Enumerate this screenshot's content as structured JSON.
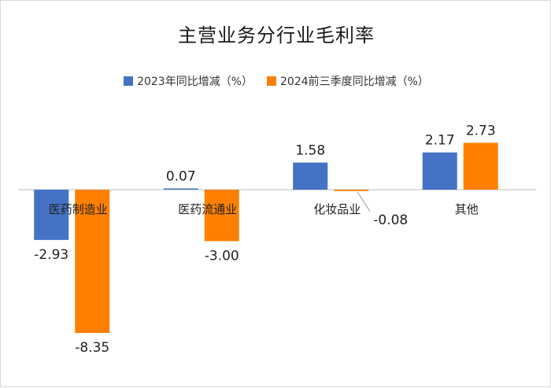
{
  "chart_data": {
    "type": "bar",
    "title": "主营业务分行业毛利率",
    "categories": [
      "医药制造业",
      "医药流通业",
      "化妆品业",
      "其他"
    ],
    "series": [
      {
        "name": "2023年同比增减（%）",
        "color": "#4472C4",
        "values": [
          -2.93,
          0.07,
          1.58,
          2.17
        ]
      },
      {
        "name": "2024前三季度同比增减（%）",
        "color": "#FF8000",
        "values": [
          -8.35,
          -3.0,
          -0.08,
          2.73
        ]
      }
    ],
    "value_labels": [
      [
        "-2.93",
        "0.07",
        "1.58",
        "2.17"
      ],
      [
        "-8.35",
        "-3.00",
        "-0.08",
        "2.73"
      ]
    ],
    "legend_position": "top",
    "grid": false,
    "axis_color": "#bfbfbf"
  }
}
